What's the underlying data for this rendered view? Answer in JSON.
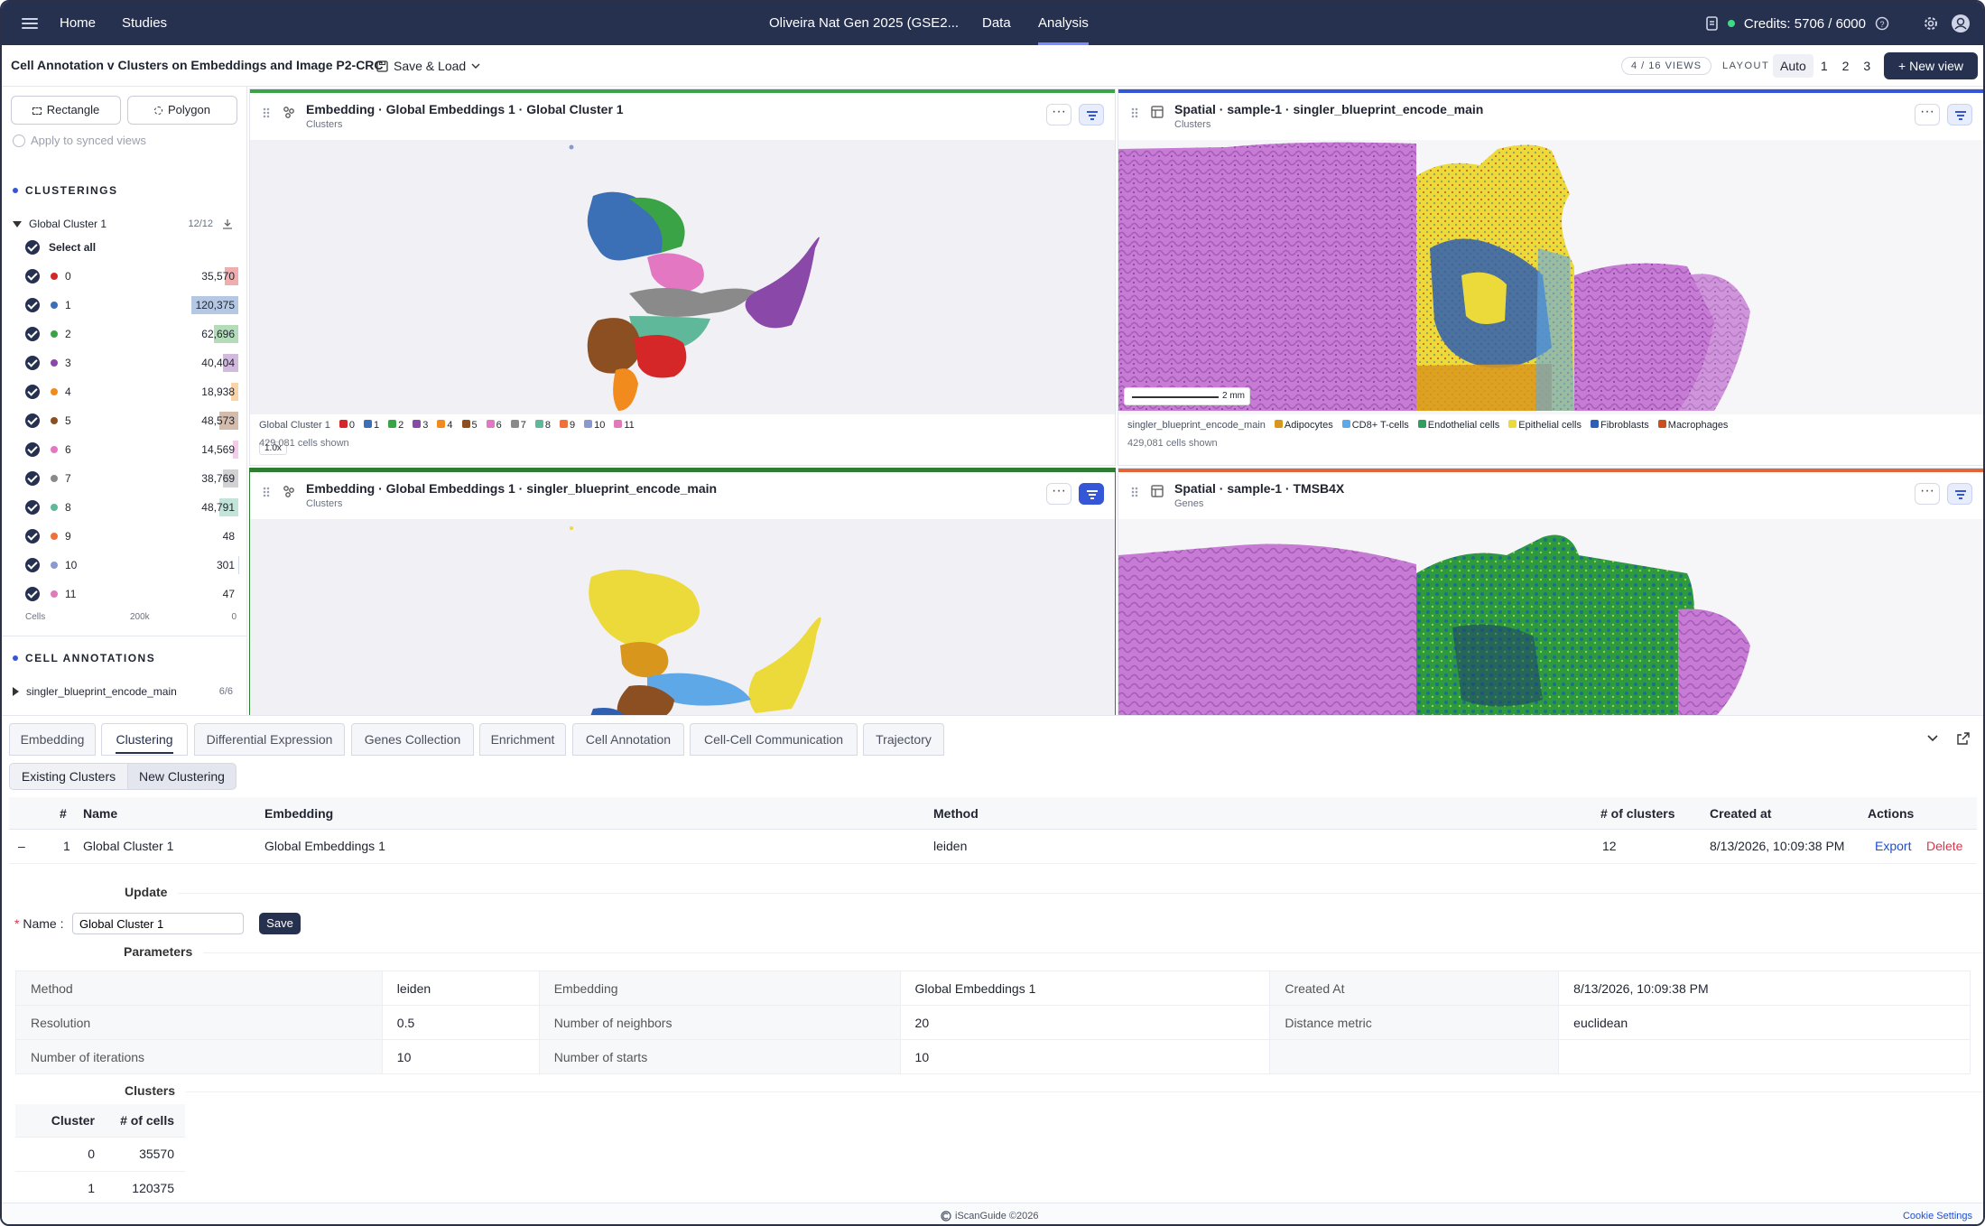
{
  "nav": {
    "home": "Home",
    "studies": "Studies",
    "project": "Oliveira Nat Gen 2025 (GSE2...",
    "data": "Data",
    "analysis": "Analysis",
    "credits": "Credits: 5706 / 6000"
  },
  "subheader": {
    "title": "Cell Annotation v Clusters on Embeddings and Image P2-CRC",
    "save_load": "Save & Load",
    "views": "4 / 16 VIEWS",
    "layout_label": "LAYOUT",
    "layout_options": [
      "Auto",
      "1",
      "2",
      "3"
    ],
    "new_view": "+ New view"
  },
  "sidebar": {
    "rectangle": "Rectangle",
    "polygon": "Polygon",
    "apply": "Apply to synced views",
    "clusterings_head": "CLUSTERINGS",
    "clustering_name": "Global Cluster 1",
    "clustering_count": "12/12",
    "select_all": "Select all",
    "clusters": [
      {
        "label": "0",
        "count": "35,570",
        "value": 35570,
        "color": "#d62728"
      },
      {
        "label": "1",
        "count": "120,375",
        "value": 120375,
        "color": "#3b6fb6"
      },
      {
        "label": "2",
        "count": "62,696",
        "value": 62696,
        "color": "#3aa345"
      },
      {
        "label": "3",
        "count": "40,404",
        "value": 40404,
        "color": "#8a49a8"
      },
      {
        "label": "4",
        "count": "18,938",
        "value": 18938,
        "color": "#f28b1e"
      },
      {
        "label": "5",
        "count": "48,573",
        "value": 48573,
        "color": "#8c4f22"
      },
      {
        "label": "6",
        "count": "14,569",
        "value": 14569,
        "color": "#e377c2"
      },
      {
        "label": "7",
        "count": "38,769",
        "value": 38769,
        "color": "#8a8a8a"
      },
      {
        "label": "8",
        "count": "48,791",
        "value": 48791,
        "color": "#5fb89a"
      },
      {
        "label": "9",
        "count": "48",
        "value": 48,
        "color": "#f0703a"
      },
      {
        "label": "10",
        "count": "301",
        "value": 301,
        "color": "#8a9ad0"
      },
      {
        "label": "11",
        "count": "47",
        "value": 47,
        "color": "#e07ab8"
      }
    ],
    "axis_cells": "Cells",
    "axis_200k": "200k",
    "axis_0": "0",
    "annotations_head": "CELL ANNOTATIONS",
    "annotation_name": "singler_blueprint_encode_main",
    "annotation_count": "6/6"
  },
  "panels": {
    "p1": {
      "title": "Embedding · Global Embeddings 1 · Global Cluster 1",
      "sub": "Clusters",
      "zoom": "1.0x",
      "legend_title": "Global Cluster 1",
      "cells": "429,081 cells shown",
      "accent": "#3aa345"
    },
    "p2": {
      "title": "Spatial · sample-1 · singler_blueprint_encode_main",
      "sub": "Clusters",
      "scale": "2 mm",
      "legend_title": "singler_blueprint_encode_main",
      "cells": "429,081 cells shown",
      "accent": "#3556d6",
      "legend": [
        {
          "name": "Adipocytes",
          "color": "#d9961c"
        },
        {
          "name": "CD8+ T-cells",
          "color": "#5fa8e8"
        },
        {
          "name": "Endothelial cells",
          "color": "#2f9e5e"
        },
        {
          "name": "Epithelial cells",
          "color": "#ecd93a"
        },
        {
          "name": "Fibroblasts",
          "color": "#2f5fb0"
        },
        {
          "name": "Macrophages",
          "color": "#c8501e"
        }
      ]
    },
    "p3": {
      "title": "Embedding · Global Embeddings 1 · singler_blueprint_encode_main",
      "sub": "Clusters",
      "accent": "#2f7d32"
    },
    "p4": {
      "title": "Spatial · sample-1 · TMSB4X",
      "sub": "Genes",
      "accent": "#e0663a"
    }
  },
  "bottom": {
    "tabs": [
      "Embedding",
      "Clustering",
      "Differential Expression",
      "Genes Collection",
      "Enrichment",
      "Cell Annotation",
      "Cell-Cell Communication",
      "Trajectory"
    ],
    "seg": [
      "Existing Clusters",
      "New Clustering"
    ],
    "columns": {
      "num": "#",
      "name": "Name",
      "embedding": "Embedding",
      "method": "Method",
      "nclusters": "# of clusters",
      "created": "Created at",
      "actions": "Actions"
    },
    "row": {
      "toggle": "–",
      "num": "1",
      "name": "Global Cluster 1",
      "embedding": "Global Embeddings 1",
      "method": "leiden",
      "nclusters": "12",
      "created": "8/13/2026, 10:09:38 PM",
      "export": "Export",
      "delete": "Delete"
    },
    "update": "Update",
    "name_label": "Name",
    "name_value": "Global Cluster 1",
    "save": "Save",
    "parameters": "Parameters",
    "params": [
      [
        "Method",
        "leiden",
        "Embedding",
        "Global Embeddings 1",
        "Created At",
        "8/13/2026, 10:09:38 PM"
      ],
      [
        "Resolution",
        "0.5",
        "Number of neighbors",
        "20",
        "Distance metric",
        "euclidean"
      ],
      [
        "Number of iterations",
        "10",
        "Number of starts",
        "10",
        "",
        ""
      ]
    ],
    "clusters_head": "Clusters",
    "cl_col1": "Cluster",
    "cl_col2": "# of cells",
    "cl_rows": [
      [
        "0",
        "35570"
      ],
      [
        "1",
        "120375"
      ]
    ]
  },
  "footer": {
    "copyright": "iScanGuide ©2026",
    "cookie": "Cookie Settings"
  }
}
